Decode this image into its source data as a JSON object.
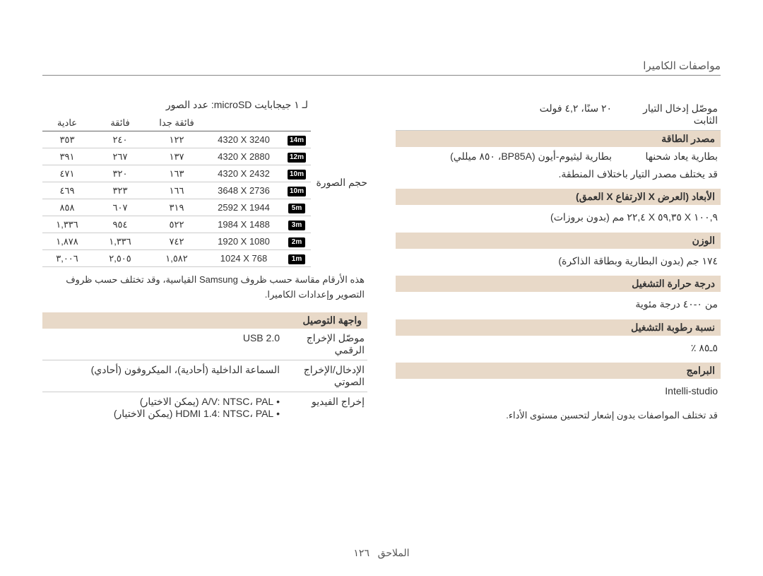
{
  "page": {
    "title": "مواصفات الكاميرا",
    "footer_label": "الملاحق",
    "page_number": "١٢٦"
  },
  "right_col": {
    "microsd_title": "لـ ١ جيجابايت microSD: عدد الصور",
    "image_size_label": "حجم الصورة",
    "table": {
      "headers": {
        "super_fine": "فائقة جدا",
        "fine": "فائقة",
        "normal": "عادية"
      },
      "rows": [
        {
          "badge": "14m",
          "res": "4320 X 3240",
          "a": "١٢٢",
          "b": "٢٤٠",
          "c": "٣٥٣"
        },
        {
          "badge": "12m",
          "res": "4320 X 2880",
          "a": "١٣٧",
          "b": "٢٦٧",
          "c": "٣٩١"
        },
        {
          "badge": "10m",
          "res": "4320 X 2432",
          "a": "١٦٣",
          "b": "٣٢٠",
          "c": "٤٧١"
        },
        {
          "badge": "10m",
          "res": "3648 X 2736",
          "a": "١٦٦",
          "b": "٣٢٣",
          "c": "٤٦٩"
        },
        {
          "badge": "5m",
          "res": "2592 X 1944",
          "a": "٣١٩",
          "b": "٦٠٧",
          "c": "٨٥٨"
        },
        {
          "badge": "3m",
          "res": "1984 X 1488",
          "a": "٥٢٢",
          "b": "٩٥٤",
          "c": "١,٣٣٦"
        },
        {
          "badge": "2m",
          "res": "1920 X 1080",
          "a": "٧٤٢",
          "b": "١,٣٣٦",
          "c": "١,٨٧٨"
        },
        {
          "badge": "1m",
          "res": "1024 X 768",
          "a": "١,٥٨٢",
          "b": "٢,٥٠٥",
          "c": "٣,٠٠٦"
        }
      ]
    },
    "table_footnote": "هذه الأرقام مقاسة حسب ظروف Samsung القياسية، وقد تختلف حسب ظروف التصوير وإعدادات الكاميرا.",
    "interface_header": "واجهة التوصيل",
    "interface": {
      "digital_out_label": "موصّل الإخراج الرقمي",
      "digital_out_value": "USB 2.0",
      "audio_io_label": "الإدخال/الإخراج الصوتي",
      "audio_io_value": "السماعة الداخلية (أحادية)، الميكروفون (أحادي)",
      "video_out_label": "إخراج الفيديو",
      "video_out_items": [
        "A/V: NTSC، PAL (يمكن الاختيار)",
        "HDMI 1.4: NTSC، PAL (يمكن الاختيار)"
      ]
    }
  },
  "left_col": {
    "dc_input_label": "موصّل إدخال التيار الثابت",
    "dc_input_value": "٢٠ سنًا، ٤,٢ فولت",
    "power_header": "مصدر الطاقة",
    "power": {
      "battery_label": "بطارية يعاد شحنها",
      "battery_value": "بطارية ليثيوم-أيون (BP85A، ٨٥٠ ميللي)",
      "note": "قد يختلف مصدر التيار باختلاف المنطقة."
    },
    "dims_header": "الأبعاد (العرض X الارتفاع X العمق)",
    "dims_value": "١٠٠,٩ X ٥٩,٣٥ X ٢٢,٤ مم (بدون بروزات)",
    "weight_header": "الوزن",
    "weight_value": "١٧٤ جم (بدون البطارية وبطاقة الذاكرة)",
    "temp_header": "درجة حرارة التشغيل",
    "temp_value": "من ٠-٤٠ درجة مئوية",
    "humidity_header": "نسبة رطوبة التشغيل",
    "humidity_value": "٥ـ٨٥ ٪",
    "software_header": "البرامج",
    "software_value": "Intelli-studio",
    "disclaimer": "قد تختلف المواصفات بدون إشعار لتحسين مستوى الأداء."
  },
  "style": {
    "header_bg": "#e8d9c8",
    "rule_color": "#cccccc",
    "text_color": "#333333"
  }
}
